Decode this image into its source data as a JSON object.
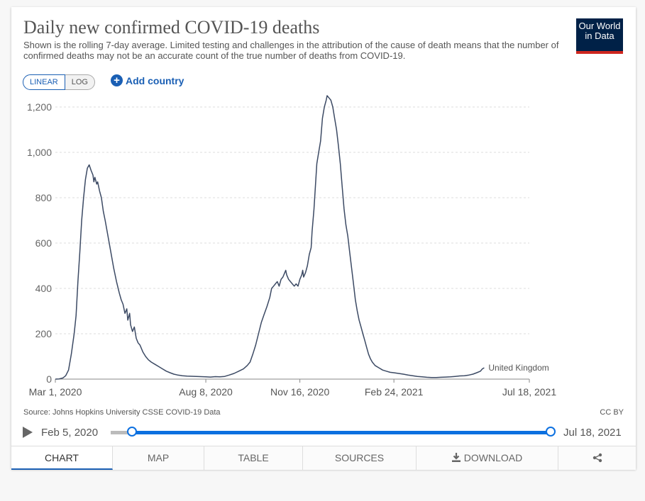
{
  "header": {
    "title": "Daily new confirmed COVID-19 deaths",
    "subtitle": "Shown is the rolling 7-day average. Limited testing and challenges in the attribution of the cause of death means that the number of confirmed deaths may not be an accurate count of the true number of deaths from COVID-19.",
    "logo_line1": "Our World",
    "logo_line2": "in Data"
  },
  "controls": {
    "linear_label": "LINEAR",
    "log_label": "LOG",
    "add_country_label": "Add country"
  },
  "chart_data": {
    "type": "line",
    "title": "Daily new confirmed COVID-19 deaths",
    "xlabel": "",
    "ylabel": "",
    "yticks": [
      0,
      200,
      400,
      600,
      800,
      1000,
      1200
    ],
    "ytick_labels": [
      "0",
      "200",
      "400",
      "600",
      "800",
      "1,000",
      "1,200"
    ],
    "ylim": [
      0,
      1250
    ],
    "xticks": [
      {
        "label": "Mar 1, 2020",
        "day": 0
      },
      {
        "label": "Aug 8, 2020",
        "day": 160
      },
      {
        "label": "Nov 16, 2020",
        "day": 260
      },
      {
        "label": "Feb 24, 2021",
        "day": 360
      },
      {
        "label": "Jul 18, 2021",
        "day": 504
      }
    ],
    "xlim": [
      0,
      504
    ],
    "grid": true,
    "series": [
      {
        "name": "United Kingdom",
        "color": "#3c4a64",
        "points": [
          [
            0,
            0
          ],
          [
            4,
            1
          ],
          [
            8,
            5
          ],
          [
            11,
            15
          ],
          [
            14,
            40
          ],
          [
            17,
            110
          ],
          [
            20,
            200
          ],
          [
            22,
            280
          ],
          [
            24,
            430
          ],
          [
            26,
            560
          ],
          [
            28,
            700
          ],
          [
            30,
            800
          ],
          [
            32,
            880
          ],
          [
            34,
            930
          ],
          [
            36,
            945
          ],
          [
            38,
            920
          ],
          [
            40,
            900
          ],
          [
            41,
            870
          ],
          [
            42,
            890
          ],
          [
            44,
            860
          ],
          [
            45,
            870
          ],
          [
            47,
            830
          ],
          [
            49,
            800
          ],
          [
            51,
            740
          ],
          [
            53,
            700
          ],
          [
            56,
            630
          ],
          [
            59,
            560
          ],
          [
            62,
            490
          ],
          [
            65,
            430
          ],
          [
            68,
            380
          ],
          [
            70,
            350
          ],
          [
            72,
            330
          ],
          [
            74,
            290
          ],
          [
            76,
            310
          ],
          [
            77,
            260
          ],
          [
            79,
            290
          ],
          [
            80,
            240
          ],
          [
            82,
            210
          ],
          [
            84,
            230
          ],
          [
            86,
            180
          ],
          [
            88,
            160
          ],
          [
            90,
            150
          ],
          [
            93,
            120
          ],
          [
            96,
            100
          ],
          [
            99,
            85
          ],
          [
            102,
            75
          ],
          [
            106,
            65
          ],
          [
            110,
            55
          ],
          [
            114,
            45
          ],
          [
            118,
            35
          ],
          [
            122,
            28
          ],
          [
            126,
            22
          ],
          [
            130,
            18
          ],
          [
            135,
            15
          ],
          [
            140,
            13
          ],
          [
            150,
            12
          ],
          [
            160,
            10
          ],
          [
            165,
            9
          ],
          [
            170,
            11
          ],
          [
            175,
            10
          ],
          [
            180,
            12
          ],
          [
            185,
            18
          ],
          [
            190,
            25
          ],
          [
            195,
            35
          ],
          [
            200,
            45
          ],
          [
            204,
            60
          ],
          [
            207,
            75
          ],
          [
            210,
            110
          ],
          [
            213,
            150
          ],
          [
            216,
            200
          ],
          [
            219,
            250
          ],
          [
            222,
            285
          ],
          [
            225,
            320
          ],
          [
            228,
            360
          ],
          [
            230,
            400
          ],
          [
            232,
            410
          ],
          [
            234,
            420
          ],
          [
            236,
            430
          ],
          [
            238,
            410
          ],
          [
            240,
            440
          ],
          [
            242,
            450
          ],
          [
            244,
            470
          ],
          [
            245,
            480
          ],
          [
            246,
            460
          ],
          [
            248,
            440
          ],
          [
            250,
            430
          ],
          [
            252,
            420
          ],
          [
            254,
            410
          ],
          [
            256,
            420
          ],
          [
            258,
            410
          ],
          [
            260,
            440
          ],
          [
            262,
            460
          ],
          [
            263,
            480
          ],
          [
            264,
            450
          ],
          [
            266,
            470
          ],
          [
            268,
            500
          ],
          [
            270,
            550
          ],
          [
            272,
            580
          ],
          [
            273,
            650
          ],
          [
            275,
            750
          ],
          [
            277,
            880
          ],
          [
            278,
            950
          ],
          [
            280,
            1000
          ],
          [
            282,
            1050
          ],
          [
            284,
            1150
          ],
          [
            286,
            1200
          ],
          [
            288,
            1230
          ],
          [
            289,
            1250
          ],
          [
            291,
            1240
          ],
          [
            293,
            1230
          ],
          [
            295,
            1200
          ],
          [
            297,
            1150
          ],
          [
            299,
            1100
          ],
          [
            301,
            1030
          ],
          [
            303,
            950
          ],
          [
            305,
            850
          ],
          [
            307,
            750
          ],
          [
            309,
            680
          ],
          [
            311,
            630
          ],
          [
            313,
            560
          ],
          [
            315,
            490
          ],
          [
            317,
            420
          ],
          [
            319,
            350
          ],
          [
            321,
            300
          ],
          [
            323,
            260
          ],
          [
            325,
            230
          ],
          [
            327,
            200
          ],
          [
            329,
            170
          ],
          [
            331,
            140
          ],
          [
            333,
            110
          ],
          [
            335,
            90
          ],
          [
            337,
            75
          ],
          [
            340,
            60
          ],
          [
            344,
            50
          ],
          [
            348,
            40
          ],
          [
            352,
            35
          ],
          [
            356,
            30
          ],
          [
            360,
            28
          ],
          [
            365,
            25
          ],
          [
            370,
            22
          ],
          [
            375,
            18
          ],
          [
            380,
            15
          ],
          [
            385,
            12
          ],
          [
            390,
            10
          ],
          [
            395,
            8
          ],
          [
            400,
            7
          ],
          [
            405,
            7
          ],
          [
            410,
            8
          ],
          [
            415,
            9
          ],
          [
            420,
            10
          ],
          [
            425,
            12
          ],
          [
            430,
            14
          ],
          [
            435,
            15
          ],
          [
            440,
            18
          ],
          [
            444,
            22
          ],
          [
            448,
            28
          ],
          [
            452,
            35
          ],
          [
            454,
            45
          ],
          [
            456,
            50
          ]
        ]
      }
    ]
  },
  "footer": {
    "source": "Source: Johns Hopkins University CSSE COVID-19 Data",
    "license": "CC BY"
  },
  "timeline": {
    "start_label": "Feb 5, 2020",
    "end_label": "Jul 18, 2021",
    "range_start_fraction": 0.0,
    "range_end_fraction": 1.0
  },
  "tabs": [
    {
      "label": "CHART",
      "active": true
    },
    {
      "label": "MAP"
    },
    {
      "label": "TABLE"
    },
    {
      "label": "SOURCES"
    },
    {
      "label": "DOWNLOAD",
      "icon": "download-icon"
    },
    {
      "label": "",
      "icon": "share-icon"
    }
  ]
}
